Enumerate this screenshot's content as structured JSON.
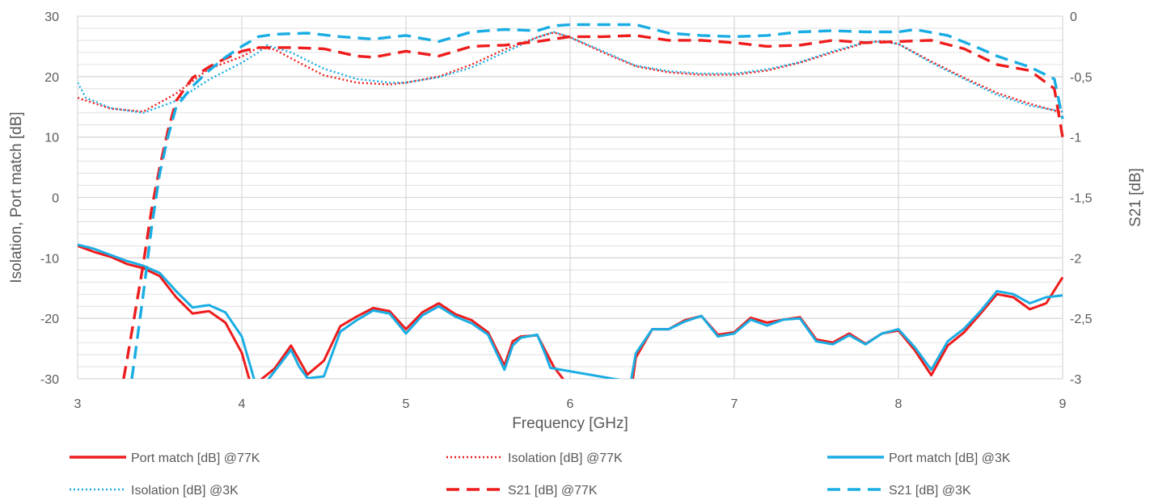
{
  "chart_data": {
    "type": "line",
    "title": "",
    "xlabel": "Frequency [GHz]",
    "ylabel_left": "Isolation, Port match [dB]",
    "ylabel_right": "S21 [dB]",
    "xlim": [
      3,
      9
    ],
    "ylim_left": [
      -30,
      30
    ],
    "ylim_right": [
      -3,
      0
    ],
    "x_ticks": [
      "3",
      "4",
      "5",
      "6",
      "7",
      "8",
      "9"
    ],
    "y_left_ticks": [
      "30",
      "20",
      "10",
      "0",
      "-10",
      "-20",
      "-30"
    ],
    "y_right_ticks": [
      "0",
      "-0,5",
      "-1",
      "-1,5",
      "-2",
      "-2,5",
      "-3"
    ],
    "grid": true,
    "legend_position": "bottom",
    "colors": {
      "red": "#ee1c1c",
      "blue": "#1aade3",
      "grid": "#d9d9d9",
      "text": "#595959"
    },
    "series": [
      {
        "name": "Port match [dB] @77K",
        "axis": "left",
        "color": "#ee1c1c",
        "style": "solid",
        "x": [
          3.0,
          3.1,
          3.2,
          3.3,
          3.4,
          3.5,
          3.6,
          3.7,
          3.8,
          3.9,
          4.0,
          4.05,
          4.1,
          4.2,
          4.3,
          4.4,
          4.5,
          4.6,
          4.7,
          4.8,
          4.9,
          5.0,
          5.1,
          5.2,
          5.3,
          5.4,
          5.5,
          5.6,
          5.65,
          5.7,
          5.8,
          5.9,
          5.97,
          6.38,
          6.4,
          6.5,
          6.6,
          6.7,
          6.8,
          6.9,
          7.0,
          7.1,
          7.2,
          7.3,
          7.4,
          7.5,
          7.6,
          7.7,
          7.8,
          7.9,
          8.0,
          8.1,
          8.2,
          8.3,
          8.4,
          8.5,
          8.6,
          8.7,
          8.8,
          8.9,
          9.0
        ],
        "y": [
          -8,
          -9,
          -9.8,
          -11,
          -11.7,
          -13,
          -16.5,
          -19.2,
          -18.8,
          -20.7,
          -25.7,
          -30.5,
          -30.5,
          -28.3,
          -24.5,
          -29.3,
          -27,
          -21.3,
          -19.7,
          -18.3,
          -18.8,
          -21.8,
          -19,
          -17.5,
          -19.3,
          -20.3,
          -22.3,
          -27.8,
          -23.8,
          -23,
          -22.8,
          -28,
          -30.5,
          -30.5,
          -26.5,
          -21.8,
          -21.8,
          -20.3,
          -19.6,
          -22.7,
          -22.3,
          -19.9,
          -20.7,
          -20.2,
          -19.8,
          -23.5,
          -24,
          -22.5,
          -24.2,
          -22.5,
          -22,
          -25.3,
          -29.4,
          -24.5,
          -22.3,
          -19.2,
          -16,
          -16.5,
          -18.5,
          -17.5,
          -13.2
        ]
      },
      {
        "name": "Isolation [dB] @77K",
        "axis": "left",
        "color": "#ee1c1c",
        "style": "dotted",
        "x": [
          3.0,
          3.2,
          3.4,
          3.6,
          3.8,
          4.0,
          4.1,
          4.2,
          4.35,
          4.5,
          4.7,
          4.9,
          5.0,
          5.2,
          5.4,
          5.6,
          5.8,
          5.9,
          6.0,
          6.2,
          6.4,
          6.6,
          6.8,
          7.0,
          7.2,
          7.4,
          7.6,
          7.8,
          7.9,
          8.0,
          8.2,
          8.4,
          8.6,
          8.8,
          9.0
        ],
        "y": [
          16.5,
          14.7,
          14.2,
          17.2,
          21.3,
          23.3,
          24.8,
          24.5,
          22.3,
          20.2,
          19,
          18.7,
          19,
          20,
          22,
          24.5,
          26.5,
          27.3,
          26.5,
          24,
          21.7,
          20.7,
          20.3,
          20.3,
          21,
          22.3,
          24,
          25.6,
          25.9,
          25.4,
          22.5,
          19.8,
          17.3,
          15.5,
          14
        ]
      },
      {
        "name": "Port match [dB] @3K",
        "axis": "left",
        "color": "#1aade3",
        "style": "solid",
        "x": [
          3.0,
          3.1,
          3.2,
          3.3,
          3.4,
          3.5,
          3.6,
          3.7,
          3.8,
          3.9,
          4.0,
          4.08,
          4.15,
          4.3,
          4.35,
          4.4,
          4.5,
          4.6,
          4.7,
          4.8,
          4.9,
          5.0,
          5.1,
          5.2,
          5.3,
          5.4,
          5.5,
          5.6,
          5.65,
          5.7,
          5.8,
          5.85,
          5.88,
          6.37,
          6.4,
          6.5,
          6.6,
          6.7,
          6.8,
          6.9,
          7.0,
          7.1,
          7.2,
          7.3,
          7.4,
          7.5,
          7.6,
          7.7,
          7.8,
          7.9,
          8.0,
          8.1,
          8.2,
          8.3,
          8.4,
          8.5,
          8.6,
          8.7,
          8.8,
          8.9,
          9.0
        ],
        "y": [
          -7.8,
          -8.5,
          -9.5,
          -10.5,
          -11.3,
          -12.5,
          -15.5,
          -18.2,
          -17.8,
          -19,
          -23,
          -30.5,
          -30.5,
          -25.2,
          -28,
          -29.9,
          -29.6,
          -22.2,
          -20.3,
          -18.7,
          -19.2,
          -22.5,
          -19.5,
          -18,
          -19.7,
          -20.8,
          -22.7,
          -28.5,
          -24.5,
          -23.2,
          -22.7,
          -26,
          -28.2,
          -30.5,
          -25.8,
          -21.8,
          -21.8,
          -20.5,
          -19.6,
          -23,
          -22.5,
          -20.2,
          -21.2,
          -20.2,
          -20,
          -23.8,
          -24.3,
          -22.8,
          -24.3,
          -22.5,
          -21.8,
          -24.8,
          -28.5,
          -23.8,
          -21.7,
          -18.8,
          -15.5,
          -16,
          -17.5,
          -16.5,
          -16.2
        ]
      },
      {
        "name": "Isolation [dB] @3K",
        "axis": "left",
        "color": "#1aade3",
        "style": "dotted",
        "x": [
          3.0,
          3.05,
          3.2,
          3.4,
          3.6,
          3.8,
          4.0,
          4.1,
          4.15,
          4.3,
          4.5,
          4.7,
          4.9,
          5.0,
          5.2,
          5.4,
          5.6,
          5.8,
          5.9,
          6.0,
          6.2,
          6.4,
          6.6,
          6.8,
          7.0,
          7.2,
          7.4,
          7.6,
          7.8,
          7.9,
          8.0,
          8.2,
          8.4,
          8.6,
          8.8,
          9.0
        ],
        "y": [
          19,
          16.5,
          14.8,
          14,
          16,
          19.5,
          22.3,
          24,
          25.2,
          24,
          21.3,
          19.6,
          19,
          19,
          19.9,
          21.5,
          24,
          26.5,
          27.4,
          26.5,
          24.2,
          21.8,
          20.9,
          20.5,
          20.5,
          21.2,
          22.4,
          24.2,
          25.7,
          25.8,
          25.4,
          22.3,
          19.6,
          17,
          15.2,
          14.2
        ]
      },
      {
        "name": "S21 [dB] @77K",
        "axis": "right",
        "color": "#ee1c1c",
        "style": "dashed",
        "x": [
          3.28,
          3.3,
          3.35,
          3.4,
          3.45,
          3.5,
          3.55,
          3.6,
          3.7,
          3.8,
          3.9,
          4.0,
          4.1,
          4.2,
          4.3,
          4.5,
          4.7,
          4.8,
          5.0,
          5.2,
          5.4,
          5.6,
          5.8,
          6.0,
          6.2,
          6.4,
          6.6,
          6.8,
          7.0,
          7.2,
          7.4,
          7.6,
          7.8,
          8.0,
          8.2,
          8.4,
          8.6,
          8.8,
          8.95,
          9.0
        ],
        "y": [
          -3.0,
          -2.85,
          -2.45,
          -2.05,
          -1.6,
          -1.25,
          -0.95,
          -0.7,
          -0.51,
          -0.42,
          -0.35,
          -0.29,
          -0.26,
          -0.26,
          -0.26,
          -0.27,
          -0.33,
          -0.34,
          -0.29,
          -0.33,
          -0.25,
          -0.24,
          -0.21,
          -0.17,
          -0.17,
          -0.16,
          -0.2,
          -0.2,
          -0.22,
          -0.25,
          -0.24,
          -0.2,
          -0.22,
          -0.21,
          -0.2,
          -0.27,
          -0.4,
          -0.45,
          -0.6,
          -1.0
        ]
      },
      {
        "name": "S21 [dB] @3K",
        "axis": "right",
        "color": "#1aade3",
        "style": "dashed",
        "x": [
          3.33,
          3.35,
          3.4,
          3.45,
          3.5,
          3.55,
          3.6,
          3.7,
          3.8,
          3.9,
          4.0,
          4.1,
          4.2,
          4.4,
          4.6,
          4.8,
          5.0,
          5.2,
          5.4,
          5.6,
          5.8,
          5.9,
          6.0,
          6.2,
          6.4,
          6.6,
          6.8,
          7.0,
          7.2,
          7.4,
          7.6,
          7.8,
          8.0,
          8.1,
          8.3,
          8.5,
          8.6,
          8.8,
          8.95,
          9.0
        ],
        "y": [
          -3.0,
          -2.8,
          -2.3,
          -1.75,
          -1.3,
          -1.0,
          -0.75,
          -0.58,
          -0.45,
          -0.34,
          -0.25,
          -0.17,
          -0.15,
          -0.14,
          -0.17,
          -0.19,
          -0.16,
          -0.21,
          -0.13,
          -0.11,
          -0.12,
          -0.08,
          -0.07,
          -0.07,
          -0.07,
          -0.14,
          -0.16,
          -0.17,
          -0.16,
          -0.13,
          -0.12,
          -0.13,
          -0.13,
          -0.11,
          -0.16,
          -0.27,
          -0.33,
          -0.42,
          -0.52,
          -0.85
        ]
      }
    ]
  }
}
